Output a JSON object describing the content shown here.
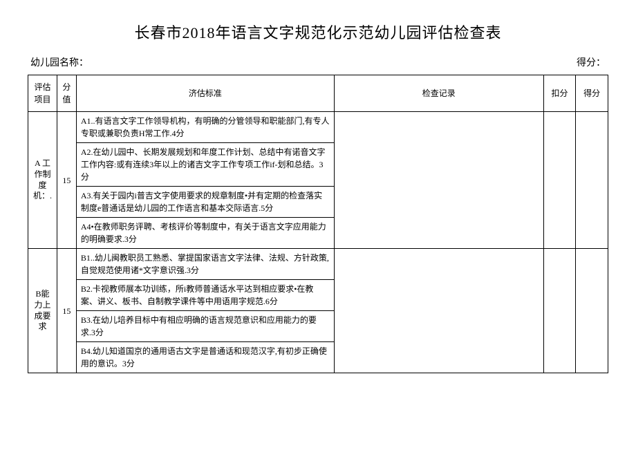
{
  "title": "长春市2018年语言文字规范化示范幼儿园评估检查表",
  "meta": {
    "org_label": "幼儿园名称：",
    "score_label": "得分："
  },
  "headers": {
    "project": "评估项目",
    "weight": "分值",
    "standard": "济估标准",
    "record": "检查记录",
    "deduct": "扣分",
    "got": "得分"
  },
  "groups": [
    {
      "name": "A\n工作制度机：.",
      "weight": "15",
      "items": [
        "A1..有语言文字工作领导机构，有明确的分管领导和职能部门,有专人专职或兼职负责H常工作.4分",
        "A2.在幼儿园中、长期发展规划和年度工作计划、总结中有诺音文字工作内容:或有连续3年以上的诸吉文字工作专项工作if-划和总结。3分",
        "A3.有关于园内i普吉文字使用要求的规章制度•并有定期的检查落实制度e普通话是幼儿园的工作语言和基本交际语言.5分",
        "A4•在教师职务评聘、考核评价等制度中，有关于语言文字应用能力的明确要求.3分"
      ]
    },
    {
      "name": "B能力上成要求",
      "weight": "15",
      "items": [
        "B1..幼儿闽教职员工熟悉、掌提国家语言文字法律、法规、方针政策,自觉规范使用诸*文字意识强.3分",
        "B2.卡视教师展本功训练，所i教师普通话水平达到相应要求•在教案、讲义、板书、自制教学课件等中用语用字规范.6分",
        "B3.在幼儿培养目标中有相应明确的语言规范意识和应用能力的要求.3分",
        "B4.幼儿知道国京的通用语古文字是普通话和现范汉字,有初步正确使用的意识。3分"
      ]
    }
  ]
}
